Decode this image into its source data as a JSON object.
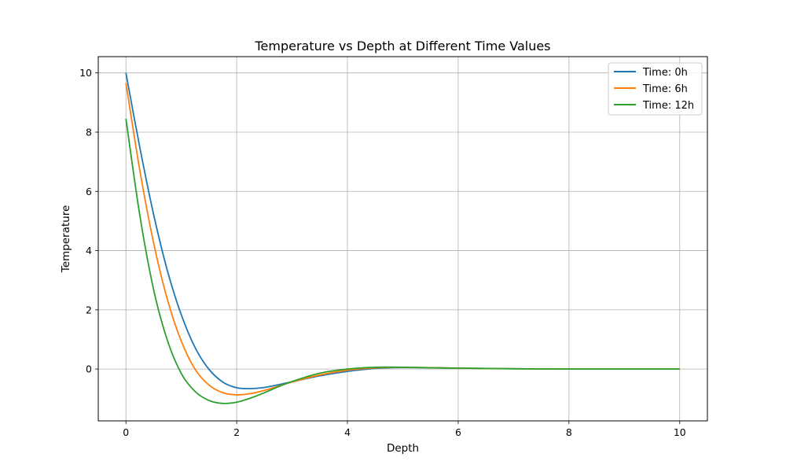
{
  "chart_data": {
    "type": "line",
    "title": "Temperature vs Depth at Different Time Values",
    "xlabel": "Depth",
    "ylabel": "Temperature",
    "xlim": [
      -0.5,
      10.5
    ],
    "ylim": [
      -1.75,
      10.55
    ],
    "xticks": [
      0,
      2,
      4,
      6,
      8,
      10
    ],
    "yticks": [
      0,
      2,
      4,
      6,
      8,
      10
    ],
    "grid": true,
    "legend_position": "top-right",
    "series": [
      {
        "name": "Time: 0h",
        "color": "#1f77b4",
        "x": [
          0,
          0.25,
          0.5,
          0.75,
          1.0,
          1.25,
          1.5,
          1.75,
          2.0,
          2.25,
          2.5,
          2.75,
          3.0,
          3.5,
          4.0,
          4.5,
          5.0,
          6.0,
          7.0,
          8.0,
          9.0,
          10.0
        ],
        "y": [
          10.0,
          7.49,
          5.22,
          3.31,
          1.83,
          0.72,
          -0.01,
          -0.44,
          -0.63,
          -0.66,
          -0.62,
          -0.53,
          -0.43,
          -0.23,
          -0.08,
          0.02,
          0.05,
          0.03,
          0.01,
          0.0,
          0.0,
          0.0
        ]
      },
      {
        "name": "Time: 6h",
        "color": "#ff7f0e",
        "x": [
          0,
          0.25,
          0.5,
          0.75,
          1.0,
          1.25,
          1.5,
          1.75,
          2.0,
          2.25,
          2.5,
          2.75,
          3.0,
          3.5,
          4.0,
          4.5,
          5.0,
          6.0,
          7.0,
          8.0,
          9.0,
          10.0
        ],
        "y": [
          9.66,
          6.72,
          4.26,
          2.34,
          0.94,
          -0.01,
          -0.54,
          -0.8,
          -0.87,
          -0.83,
          -0.72,
          -0.58,
          -0.44,
          -0.2,
          -0.04,
          0.04,
          0.06,
          0.03,
          0.01,
          0.0,
          0.0,
          0.0
        ]
      },
      {
        "name": "Time: 12h",
        "color": "#2ca02c",
        "x": [
          0,
          0.25,
          0.5,
          0.75,
          1.0,
          1.25,
          1.5,
          1.75,
          2.0,
          2.25,
          2.5,
          2.75,
          3.0,
          3.5,
          4.0,
          4.5,
          5.0,
          6.0,
          7.0,
          8.0,
          9.0,
          10.0
        ],
        "y": [
          8.45,
          5.2,
          2.68,
          0.96,
          -0.15,
          -0.76,
          -1.06,
          -1.16,
          -1.12,
          -0.98,
          -0.8,
          -0.6,
          -0.42,
          -0.14,
          0.0,
          0.06,
          0.06,
          0.03,
          0.01,
          0.0,
          0.0,
          0.0
        ]
      }
    ]
  }
}
